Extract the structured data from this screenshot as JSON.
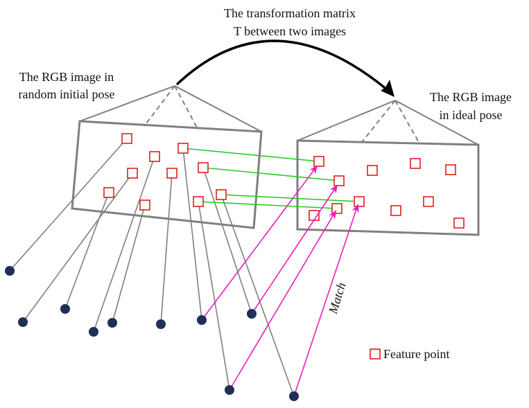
{
  "title": {
    "line1": "The transformation matrix",
    "line2": "T between two images"
  },
  "left_image": {
    "label_line1": "The RGB image in",
    "label_line2": "random initial pose"
  },
  "right_image": {
    "label_line1": "The RGB image",
    "label_line2": "in ideal pose"
  },
  "match_label": "Match",
  "legend": {
    "label": "Feature point"
  },
  "colors": {
    "frame": "#7f7f7f",
    "feature": "#e11b1b",
    "correspondence": "#22cc22",
    "match_arrow": "#ee1bbf",
    "point": "#1f3057",
    "transform_arrow": "#000000"
  }
}
